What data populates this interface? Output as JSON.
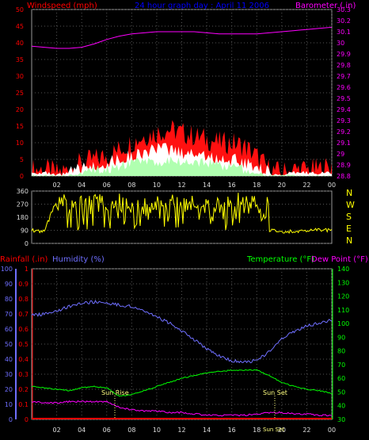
{
  "header": {
    "wind_label": "Windspeed (mph)",
    "graph_title": "24 hour graph day : April 11 2006",
    "baro_label": "Barometer (.in)"
  },
  "time_ticks": [
    "02",
    "04",
    "06",
    "08",
    "10",
    "12",
    "14",
    "16",
    "18",
    "20",
    "22",
    "00"
  ],
  "colors": {
    "background": "#000000",
    "wind_axis": "#ff0000",
    "baro_axis": "#ff00ff",
    "title": "#0000ff",
    "direction": "#ffff00",
    "rain_axis": "#ff0000",
    "humidity": "#6f6fff",
    "temp_axis": "#00ff00",
    "dew_axis": "#ff00ff",
    "grid": "#555555",
    "wind_gust": "#ff1010",
    "wind_avg": "#ffffff",
    "wind_low": "#b0ffb0",
    "sun_marker": "#ffff80"
  },
  "panels": {
    "wind": {
      "ticks": [
        "0",
        "5",
        "10",
        "15",
        "20",
        "25",
        "30",
        "35",
        "40",
        "45",
        "50"
      ],
      "baro_ticks": [
        "28.8",
        "28.9",
        "29",
        "29.1",
        "29.2",
        "29.3",
        "29.4",
        "29.5",
        "29.6",
        "29.7",
        "29.8",
        "29.9",
        "30",
        "30.1",
        "30.2",
        "30.3"
      ]
    },
    "direction": {
      "ticks": [
        "0",
        "90",
        "180",
        "270",
        "360"
      ],
      "compass": [
        "N",
        "W",
        "S",
        "E",
        "N"
      ]
    },
    "lower": {
      "rain_label": "Rainfall (.in)",
      "humidity_label": "Humidity (%)",
      "temp_label": "Temperature (°F)",
      "dew_label": "Dew Point (°F)",
      "rain_ticks": [
        "0",
        "0.1",
        "0.2",
        "0.3",
        "0.4",
        "0.5",
        "0.6",
        "0.7",
        "0.8",
        "0.9",
        "1"
      ],
      "humidity_ticks": [
        "0",
        "10",
        "20",
        "30",
        "40",
        "50",
        "60",
        "70",
        "80",
        "90",
        "100"
      ],
      "temp_ticks": [
        "30",
        "40",
        "50",
        "60",
        "70",
        "80",
        "90",
        "100",
        "110",
        "120",
        "130",
        "140"
      ],
      "sun_rise_label": "Sun Rise",
      "sun_set_label": "Sun Set",
      "sun_set_label_lower": "Sun Set"
    }
  },
  "chart_data": [
    {
      "type": "area",
      "title": "24 hour graph day : April 11 2006",
      "x_unit": "hour of day",
      "ylabel": "Windspeed (mph)",
      "ylim": [
        0,
        50
      ],
      "y2label": "Barometer (.in)",
      "y2lim": [
        28.8,
        30.3
      ],
      "x": [
        0,
        1,
        2,
        3,
        4,
        5,
        6,
        7,
        8,
        9,
        10,
        11,
        12,
        13,
        14,
        15,
        16,
        17,
        18,
        19,
        20,
        21,
        22,
        23,
        24
      ],
      "series": [
        {
          "name": "gust",
          "color": "#ff1010",
          "values": [
            2,
            2,
            1,
            2,
            4,
            5,
            6,
            8,
            10,
            12,
            13,
            14,
            13,
            12,
            11,
            10,
            10,
            9,
            6,
            2,
            1,
            2,
            2,
            2,
            3
          ]
        },
        {
          "name": "average",
          "color": "#ffffff",
          "values": [
            1,
            1,
            0,
            1,
            2,
            3,
            4,
            5,
            6,
            7,
            8,
            8,
            7,
            7,
            6,
            5,
            5,
            4,
            3,
            1,
            0,
            1,
            1,
            1,
            1
          ]
        },
        {
          "name": "low",
          "color": "#b0ffb0",
          "values": [
            0,
            0,
            0,
            0,
            1,
            2,
            2,
            3,
            4,
            4,
            4,
            5,
            4,
            4,
            4,
            3,
            3,
            2,
            1,
            0,
            0,
            0,
            0,
            0,
            0
          ]
        },
        {
          "name": "barometer",
          "color": "#ff00ff",
          "axis": "right",
          "values": [
            29.97,
            29.96,
            29.95,
            29.95,
            29.96,
            29.99,
            30.03,
            30.06,
            30.08,
            30.09,
            30.1,
            30.1,
            30.1,
            30.1,
            30.09,
            30.08,
            30.08,
            30.08,
            30.08,
            30.09,
            30.1,
            30.11,
            30.12,
            30.13,
            30.14
          ]
        }
      ]
    },
    {
      "type": "line",
      "x_unit": "hour of day",
      "ylabel": "Wind direction (degrees)",
      "ylim": [
        0,
        360
      ],
      "x": [
        0,
        1,
        2,
        3,
        4,
        5,
        6,
        7,
        8,
        9,
        10,
        11,
        12,
        13,
        14,
        15,
        16,
        17,
        18,
        19,
        20,
        21,
        22,
        23,
        24
      ],
      "series": [
        {
          "name": "direction",
          "color": "#ffff00",
          "values": [
            90,
            80,
            300,
            280,
            300,
            290,
            280,
            250,
            270,
            260,
            270,
            280,
            260,
            270,
            250,
            270,
            260,
            270,
            280,
            90,
            80,
            85,
            90,
            95,
            90
          ]
        }
      ]
    },
    {
      "type": "line",
      "x_unit": "hour of day",
      "ylabel": "Humidity (%)",
      "ylim": [
        0,
        100
      ],
      "y2label": "Temperature (°F) / Dew Point (°F)",
      "y2lim": [
        30,
        140
      ],
      "x": [
        0,
        1,
        2,
        3,
        4,
        5,
        6,
        7,
        8,
        9,
        10,
        11,
        12,
        13,
        14,
        15,
        16,
        17,
        18,
        19,
        20,
        21,
        22,
        23,
        24
      ],
      "series": [
        {
          "name": "Humidity (%)",
          "color": "#6f6fff",
          "values": [
            69,
            70,
            72,
            75,
            77,
            78,
            77,
            76,
            75,
            72,
            68,
            64,
            59,
            53,
            47,
            42,
            39,
            38,
            39,
            45,
            54,
            58,
            62,
            64,
            66
          ]
        },
        {
          "name": "Temperature (°F)",
          "color": "#00ff00",
          "axis": "right",
          "values": [
            54,
            53,
            52,
            51,
            53,
            54,
            53,
            47,
            48,
            51,
            54,
            57,
            60,
            62,
            64,
            65,
            66,
            66,
            66,
            62,
            57,
            54,
            52,
            51,
            49
          ]
        },
        {
          "name": "Dew Point (°F)",
          "color": "#ff00ff",
          "axis": "right",
          "values": [
            43,
            42,
            42,
            43,
            43,
            43,
            43,
            39,
            37,
            36,
            36,
            35,
            35,
            34,
            33,
            33,
            33,
            33,
            34,
            35,
            35,
            34,
            34,
            33,
            33
          ]
        },
        {
          "name": "Rainfall (.in)",
          "color": "#ff0000",
          "values": [
            0,
            0,
            0,
            0,
            0,
            0,
            0,
            0,
            0,
            0,
            0,
            0,
            0,
            0,
            0,
            0,
            0,
            0,
            0,
            0,
            0,
            0,
            0,
            0,
            0
          ]
        }
      ],
      "markers": [
        {
          "label": "Sun Rise",
          "x": 6.4
        },
        {
          "label": "Sun Set",
          "x": 19.6
        }
      ]
    }
  ]
}
